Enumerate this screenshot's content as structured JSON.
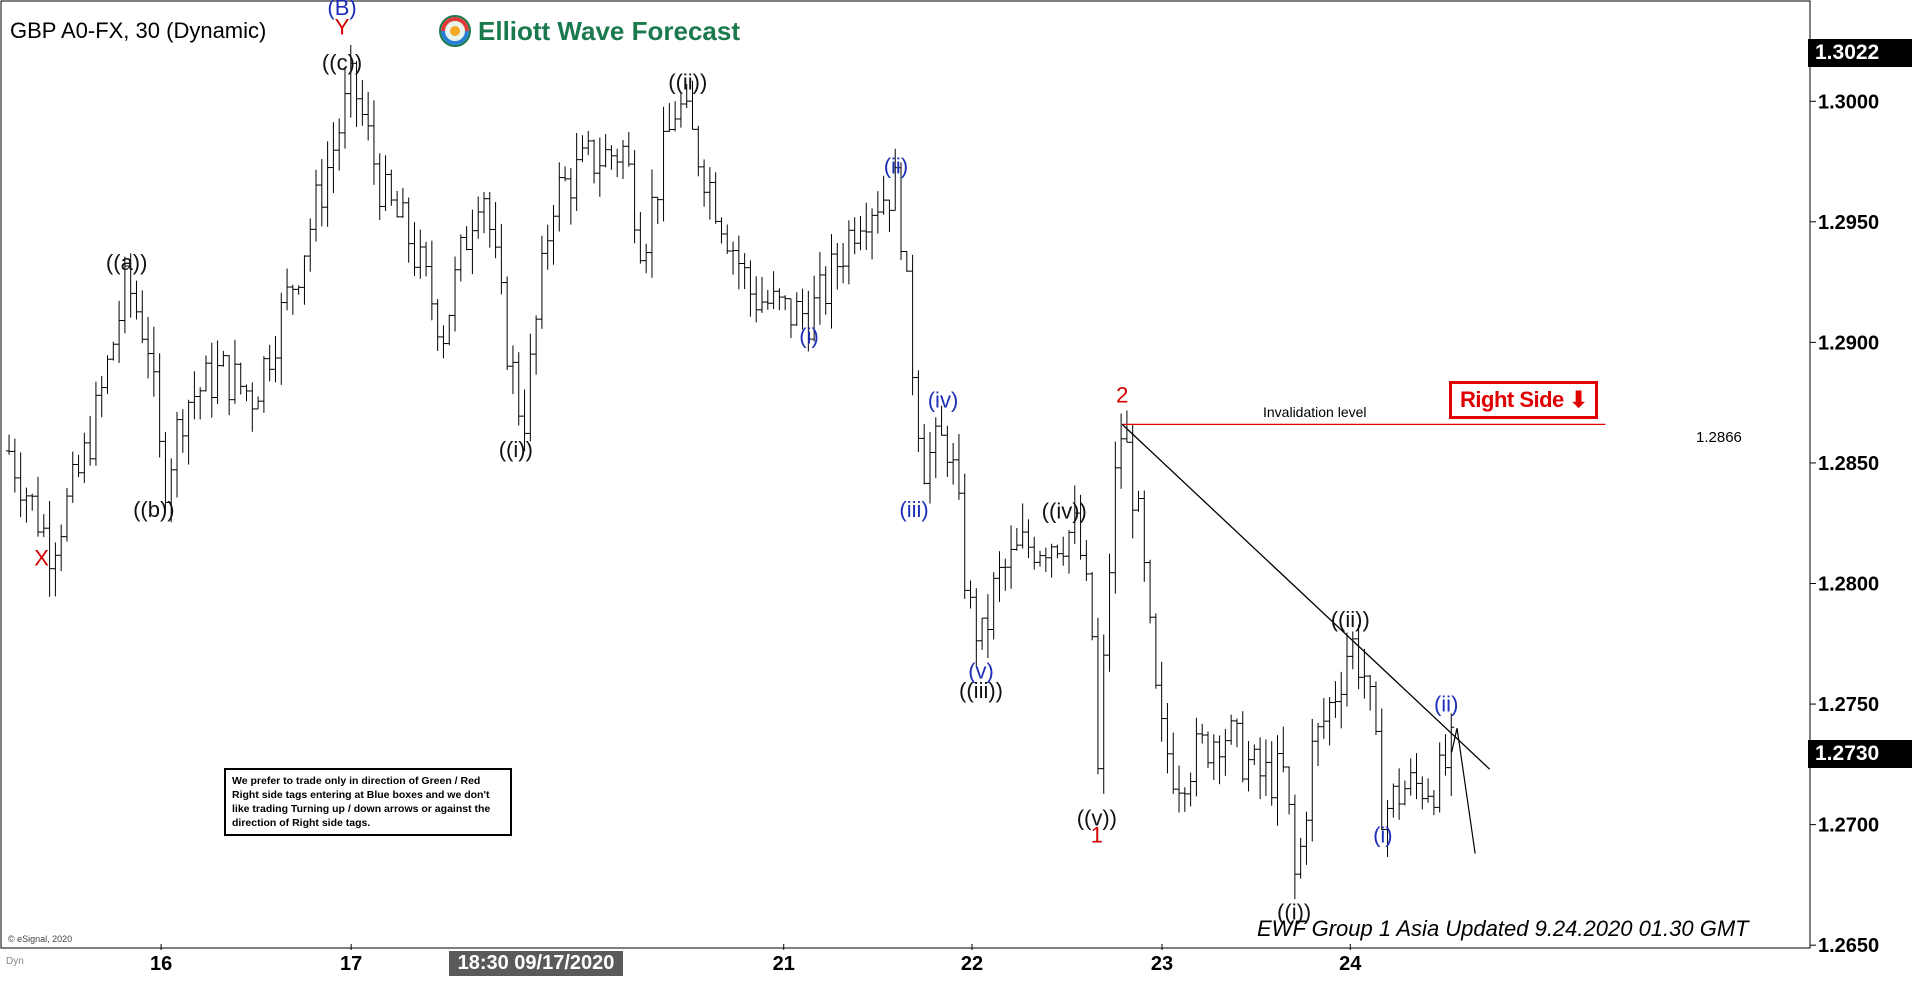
{
  "header": {
    "symbol": "GBP A0-FX, 30 (Dynamic)",
    "brand": "Elliott Wave Forecast"
  },
  "annotations": {
    "right_side_label": "Right Side",
    "invalidation_label": "Invalidation level",
    "invalidation_value": "1.2866",
    "note": "We prefer to trade only in direction of Green / Red Right side tags entering at Blue boxes and we don't like trading Turning up / down arrows or against the direction of Right side tags.",
    "footer": "EWF Group 1 Asia Updated 9.24.2020 01.30 GMT",
    "copyright": "© eSignal, 2020",
    "dyn": "Dyn",
    "last_price": "1.2730",
    "top_price": "1.3022",
    "crosshair_time": "18:30 09/17/2020"
  },
  "colors": {
    "background": "#ffffff",
    "bars": "#000000",
    "wave_black": "#111111",
    "wave_blue": "#1d2fb8",
    "wave_red": "#d40000",
    "brand_green": "#1b7a4d",
    "invalidation_line": "#e00000"
  },
  "chart_data": {
    "type": "ohlc",
    "title": "GBP A0-FX, 30 (Dynamic)",
    "y_ticks": [
      "1.3000",
      "1.2950",
      "1.2900",
      "1.2850",
      "1.2800",
      "1.2750",
      "1.2700",
      "1.2650"
    ],
    "x_ticks": [
      "16",
      "17",
      "21",
      "22",
      "23",
      "24"
    ],
    "ylim": [
      1.2648,
      1.3042
    ],
    "xlim": [
      0,
      100
    ],
    "price_path": [
      [
        0.5,
        1.2855
      ],
      [
        2.8,
        1.2815
      ],
      [
        4.5,
        1.2848
      ],
      [
        5.5,
        1.2875
      ],
      [
        7.0,
        1.2925
      ],
      [
        8.2,
        1.29
      ],
      [
        9.0,
        1.284
      ],
      [
        10.2,
        1.2875
      ],
      [
        12.2,
        1.2888
      ],
      [
        14.0,
        1.2878
      ],
      [
        16.5,
        1.2932
      ],
      [
        19.5,
        1.3008
      ],
      [
        21.2,
        1.296
      ],
      [
        22.5,
        1.2945
      ],
      [
        24.5,
        1.2905
      ],
      [
        26.6,
        1.297
      ],
      [
        28.0,
        1.29
      ],
      [
        28.9,
        1.2865
      ],
      [
        30.5,
        1.296
      ],
      [
        32.5,
        1.2975
      ],
      [
        34.5,
        1.298
      ],
      [
        35.5,
        1.294
      ],
      [
        37.4,
        1.3
      ],
      [
        38.5,
        1.298
      ],
      [
        40.5,
        1.294
      ],
      [
        41.5,
        1.292
      ],
      [
        43.5,
        1.2912
      ],
      [
        44.8,
        1.2912
      ],
      [
        45.5,
        1.292
      ],
      [
        47.5,
        1.2955
      ],
      [
        49.6,
        1.2965
      ],
      [
        50.3,
        1.29
      ],
      [
        51.0,
        1.285
      ],
      [
        52.3,
        1.286
      ],
      [
        52.8,
        1.284
      ],
      [
        53.5,
        1.279
      ],
      [
        54.3,
        1.2775
      ],
      [
        55.0,
        1.28
      ],
      [
        56.5,
        1.2815
      ],
      [
        59.5,
        1.2822
      ],
      [
        60.5,
        1.277
      ],
      [
        60.6,
        1.2712
      ],
      [
        61.5,
        1.2835
      ],
      [
        62.0,
        1.2866
      ],
      [
        63.0,
        1.282
      ],
      [
        64.0,
        1.274
      ],
      [
        65.0,
        1.272
      ],
      [
        67.5,
        1.274
      ],
      [
        69.5,
        1.272
      ],
      [
        71.0,
        1.272
      ],
      [
        71.6,
        1.2673
      ],
      [
        72.5,
        1.273
      ],
      [
        74.0,
        1.276
      ],
      [
        74.6,
        1.2777
      ],
      [
        75.5,
        1.276
      ],
      [
        76.4,
        1.2705
      ],
      [
        77.5,
        1.2715
      ],
      [
        79.5,
        1.2718
      ],
      [
        80.2,
        1.273
      ]
    ],
    "wave_labels": [
      {
        "text": "X",
        "x": 2.3,
        "y": 1.282,
        "color": "red",
        "pos": "below"
      },
      {
        "text": "((a))",
        "x": 7.0,
        "y": 1.2925,
        "color": "black",
        "pos": "above"
      },
      {
        "text": "((b))",
        "x": 8.5,
        "y": 1.284,
        "color": "black",
        "pos": "below"
      },
      {
        "text": "(B)",
        "x": 18.9,
        "y": 1.3039,
        "color": "blue",
        "pos": "at"
      },
      {
        "text": "Y",
        "x": 18.9,
        "y": 1.3031,
        "color": "red",
        "pos": "at"
      },
      {
        "text": "((c))",
        "x": 18.9,
        "y": 1.3008,
        "color": "black",
        "pos": "above"
      },
      {
        "text": "((i))",
        "x": 28.5,
        "y": 1.2865,
        "color": "black",
        "pos": "below"
      },
      {
        "text": "((ii))",
        "x": 38.0,
        "y": 1.3,
        "color": "black",
        "pos": "above"
      },
      {
        "text": "(i)",
        "x": 44.7,
        "y": 1.2912,
        "color": "blue",
        "pos": "below"
      },
      {
        "text": "(ii)",
        "x": 49.5,
        "y": 1.2965,
        "color": "blue",
        "pos": "above"
      },
      {
        "text": "(iii)",
        "x": 50.5,
        "y": 1.284,
        "color": "blue",
        "pos": "below"
      },
      {
        "text": "(iv)",
        "x": 52.1,
        "y": 1.2868,
        "color": "blue",
        "pos": "above"
      },
      {
        "text": "(v)",
        "x": 54.2,
        "y": 1.2773,
        "color": "blue",
        "pos": "below"
      },
      {
        "text": "((iii))",
        "x": 54.2,
        "y": 1.2765,
        "color": "black",
        "pos": "below"
      },
      {
        "text": "((iv))",
        "x": 58.8,
        "y": 1.2822,
        "color": "black",
        "pos": "above"
      },
      {
        "text": "((v))",
        "x": 60.6,
        "y": 1.2712,
        "color": "black",
        "pos": "below"
      },
      {
        "text": "1",
        "x": 60.6,
        "y": 1.2705,
        "color": "red",
        "pos": "below"
      },
      {
        "text": "2",
        "x": 62.0,
        "y": 1.287,
        "color": "red",
        "pos": "above"
      },
      {
        "text": "((ii))",
        "x": 74.6,
        "y": 1.2777,
        "color": "black",
        "pos": "above"
      },
      {
        "text": "((i))",
        "x": 71.5,
        "y": 1.2673,
        "color": "black",
        "pos": "below"
      },
      {
        "text": "(i)",
        "x": 76.4,
        "y": 1.2705,
        "color": "blue",
        "pos": "below"
      },
      {
        "text": "(ii)",
        "x": 79.9,
        "y": 1.2742,
        "color": "blue",
        "pos": "above"
      }
    ],
    "invalidation_level": 1.2866,
    "trendline": [
      [
        62.0,
        1.2866
      ],
      [
        82.3,
        1.2723
      ]
    ],
    "projection": [
      [
        80.2,
        1.273
      ],
      [
        80.5,
        1.274
      ],
      [
        81.5,
        1.2688
      ]
    ]
  }
}
